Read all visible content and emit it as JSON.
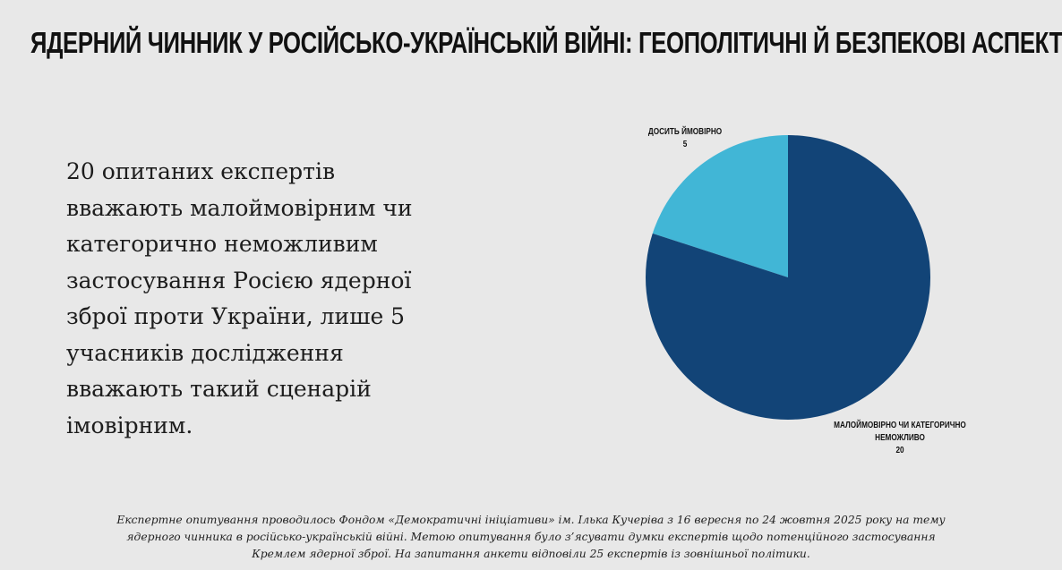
{
  "header": {
    "title": "ЯДЕРНИЙ ЧИННИК У РОСІЙСЬКО-УКРАЇНСЬКІЙ ВІЙНІ: ГЕОПОЛІТИЧНІ Й БЕЗПЕКОВІ АСПЕКТИ"
  },
  "main": {
    "description": "20 опитаних експертів вважають малоймовірним чи категорично неможливим застосування Росією ядерної зброї проти України, лише 5 учасників дослідження вважають такий сценарій імовірним."
  },
  "chart_data": {
    "type": "pie",
    "title": "",
    "categories": [
      "Досить ймовірно",
      "Малоймовірно чи категорично неможливо"
    ],
    "values": [
      5,
      20
    ],
    "colors": [
      "#41b6d6",
      "#124477"
    ],
    "labels": [
      {
        "name": "ДОСИТЬ ЙМОВІРНО",
        "value": "5"
      },
      {
        "name": "МАЛОЙМОВІРНО ЧИ КАТЕГОРИЧНО НЕМОЖЛИВО",
        "value": "20"
      }
    ],
    "start_angle": "12 o'clock, counter-clockwise",
    "total": 25
  },
  "footnote": {
    "lines": [
      "Експертне опитування проводилось Фондом «Демократичні ініціативи» ім. Ілька Кучеріва з 16 вересня по 24 жовтня 2025 року на тему",
      "ядерного чинника в російсько-українській війні. Метою опитування було з’ясувати думки експертів щодо потенційного застосування",
      "Кремлем ядерної зброї. На запитання анкети відповіли 25 експертів із зовнішньої політики."
    ]
  }
}
